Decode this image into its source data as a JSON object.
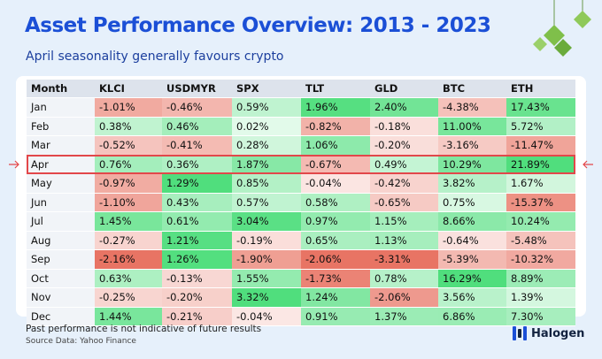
{
  "header": {
    "title": "Asset Performance Overview: 2013 - 2023",
    "subtitle": "April seasonality generally favours crypto"
  },
  "table": {
    "columns": [
      "Month",
      "KLCI",
      "USDMYR",
      "SPX",
      "TLT",
      "GLD",
      "BTC",
      "ETH"
    ],
    "highlight_row": 3,
    "rows": [
      [
        "Jan",
        "-1.01%",
        "-0.46%",
        "0.59%",
        "1.96%",
        "2.40%",
        "-4.38%",
        "17.43%"
      ],
      [
        "Feb",
        "0.38%",
        "0.46%",
        "0.02%",
        "-0.82%",
        "-0.18%",
        "11.00%",
        "5.72%"
      ],
      [
        "Mar",
        "-0.52%",
        "-0.41%",
        "0.28%",
        "1.06%",
        "-0.20%",
        "-3.16%",
        "-11.47%"
      ],
      [
        "Apr",
        "0.76%",
        "0.36%",
        "1.87%",
        "-0.67%",
        "0.49%",
        "10.29%",
        "21.89%"
      ],
      [
        "May",
        "-0.97%",
        "1.29%",
        "0.85%",
        "-0.04%",
        "-0.42%",
        "3.82%",
        "1.67%"
      ],
      [
        "Jun",
        "-1.10%",
        "0.43%",
        "0.57%",
        "0.58%",
        "-0.65%",
        "0.75%",
        "-15.37%"
      ],
      [
        "Jul",
        "1.45%",
        "0.61%",
        "3.04%",
        "0.97%",
        "1.15%",
        "8.66%",
        "10.24%"
      ],
      [
        "Aug",
        "-0.27%",
        "1.21%",
        "-0.19%",
        "0.65%",
        "1.13%",
        "-0.64%",
        "-5.48%"
      ],
      [
        "Sep",
        "-2.16%",
        "1.26%",
        "-1.90%",
        "-2.06%",
        "-3.31%",
        "-5.39%",
        "-10.32%"
      ],
      [
        "Oct",
        "0.63%",
        "-0.13%",
        "1.55%",
        "-1.73%",
        "0.78%",
        "16.29%",
        "8.89%"
      ],
      [
        "Nov",
        "-0.25%",
        "-0.20%",
        "3.32%",
        "1.24%",
        "-2.06%",
        "3.56%",
        "1.39%"
      ],
      [
        "Dec",
        "1.44%",
        "-0.21%",
        "-0.04%",
        "0.91%",
        "1.37%",
        "6.86%",
        "7.30%"
      ]
    ]
  },
  "footer": {
    "note": "Past performance is not indicative of future results",
    "source": "Source Data: Yahoo Finance",
    "brand": "Halogen"
  }
}
